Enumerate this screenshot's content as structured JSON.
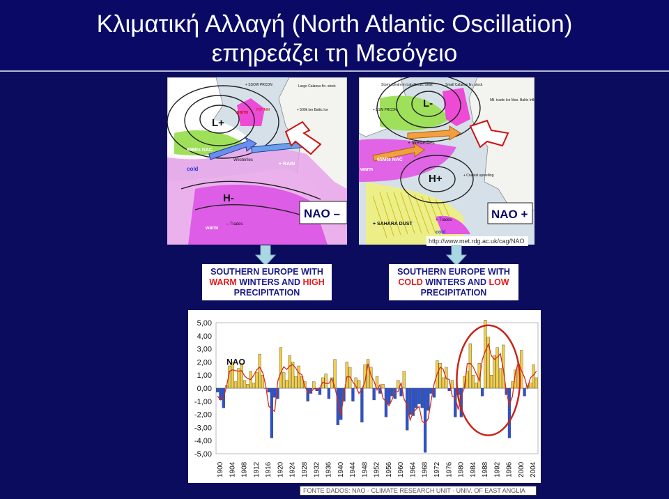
{
  "header": {
    "title_line1": "Κλιματική Αλλαγή (North Atlantic Oscillation)",
    "title_line2": "επηρεάζει τη Μεσόγειο"
  },
  "map_left": {
    "phase_label": "NAO –",
    "low_label": "L+",
    "high_label": "H-",
    "labels": [
      "warm",
      "cold",
      "warm",
      "– Trades",
      "Westerlies",
      "+ RAIN",
      "65Mts NAC",
      "+ SSOW PRCDN",
      "Large Calanus fin. stock",
      "+ 500k km Baltic Ice",
      "FST MM"
    ]
  },
  "map_right": {
    "phase_label": "NAO +",
    "low_label": "L-",
    "high_label": "H+",
    "labels": [
      "Storm Centre in Lab-Nordic Seas",
      "+ LSW PRCDN",
      "+ Westerlies",
      "65Mts NAC",
      "warm",
      "+ Coastal upwelling",
      "+ SAHARA DUST",
      "+ Trades",
      "cold",
      "Small Calanus fin. stock",
      "Mil. tradic Ice Max. Baltic Inflow"
    ],
    "url": "http://www.met.rdg.ac.uk/cag/NAO"
  },
  "effects": [
    {
      "line1": "SOUTHERN EUROPE WITH",
      "w1": "WARM",
      "mid": " WINTERS AND ",
      "w2": "HIGH",
      "line3": "PRECIPITATION"
    },
    {
      "line1": "SOUTHERN EUROPE WITH",
      "w1": "COLD",
      "mid": " WINTERS AND ",
      "w2": "LOW",
      "line3": "PRECIPITATION"
    }
  ],
  "source": "FONTE DADOS: NAO - CLIMATE RESEARCH UNIT - UNIV. OF EAST ANGLIA",
  "colors": {
    "bar_pos": "#f2cf4a",
    "bar_neg": "#2b53d0",
    "line": "#d42a1e",
    "circle": "#c8241a",
    "background": "#0c0c5e"
  },
  "chart_data": {
    "type": "bar",
    "annotation": "NAO",
    "ylim": [
      -5,
      5
    ],
    "ytick_labels": [
      "5,00",
      "4,00",
      "3,00",
      "2,00",
      "1,00",
      "0,00",
      "-1,00",
      "-2,00",
      "-3,00",
      "-4,00",
      "-5,00"
    ],
    "xtick_labels": [
      "1900",
      "1904",
      "1908",
      "1912",
      "1916",
      "1920",
      "1924",
      "1928",
      "1932",
      "1936",
      "1940",
      "1944",
      "1948",
      "1952",
      "1956",
      "1960",
      "1964",
      "1968",
      "1972",
      "1976",
      "1980",
      "1984",
      "1988",
      "1992",
      "1996",
      "2000",
      "2004"
    ],
    "x_start": 1899,
    "x_end": 2005,
    "years": [
      1899,
      1900,
      1901,
      1902,
      1903,
      1904,
      1905,
      1906,
      1907,
      1908,
      1909,
      1910,
      1911,
      1912,
      1913,
      1914,
      1915,
      1916,
      1917,
      1918,
      1919,
      1920,
      1921,
      1922,
      1923,
      1924,
      1925,
      1926,
      1927,
      1928,
      1929,
      1930,
      1931,
      1932,
      1933,
      1934,
      1935,
      1936,
      1937,
      1938,
      1939,
      1940,
      1941,
      1942,
      1943,
      1944,
      1945,
      1946,
      1947,
      1948,
      1949,
      1950,
      1951,
      1952,
      1953,
      1954,
      1955,
      1956,
      1957,
      1958,
      1959,
      1960,
      1961,
      1962,
      1963,
      1964,
      1965,
      1966,
      1967,
      1968,
      1969,
      1970,
      1971,
      1972,
      1973,
      1974,
      1975,
      1976,
      1977,
      1978,
      1979,
      1980,
      1981,
      1982,
      1983,
      1984,
      1985,
      1986,
      1987,
      1988,
      1989,
      1990,
      1991,
      1992,
      1993,
      1994,
      1995,
      1996,
      1997,
      1998,
      1999,
      2000,
      2001,
      2002,
      2003,
      2004,
      2005
    ],
    "values": [
      -0.3,
      -0.9,
      -1.5,
      0.2,
      1.7,
      2.0,
      0.5,
      1.5,
      1.9,
      0.6,
      0.3,
      1.3,
      0.4,
      1.2,
      2.6,
      1.0,
      0.0,
      -0.3,
      -3.8,
      -0.7,
      -0.8,
      3.1,
      1.2,
      0.6,
      2.5,
      2.0,
      0.9,
      1.7,
      0.9,
      0.5,
      -1.0,
      -0.4,
      0.5,
      -0.2,
      -0.5,
      0.8,
      1.1,
      -0.8,
      0.8,
      2.2,
      -2.8,
      -2.4,
      -1.0,
      2.0,
      1.6,
      -1.0,
      0.8,
      0.6,
      -2.6,
      1.8,
      2.2,
      1.6,
      -0.9,
      0.9,
      -0.4,
      0.3,
      -2.2,
      -1.2,
      -0.6,
      -0.8,
      0.6,
      -0.6,
      1.3,
      -3.2,
      -2.0,
      -2.1,
      -1.5,
      -1.2,
      -1.5,
      -4.9,
      -1.7,
      -0.4,
      -0.7,
      2.1,
      1.9,
      0.8,
      1.6,
      -0.2,
      0.6,
      -2.2,
      -0.5,
      -2.2,
      0.9,
      1.3,
      3.4,
      1.0,
      0.4,
      1.9,
      -0.6,
      5.2,
      3.9,
      1.0,
      2.5,
      3.1,
      1.5,
      3.3,
      -0.5,
      -3.8,
      0.5,
      1.4,
      1.7,
      2.9,
      -0.6,
      0.2,
      0.4,
      1.8,
      0.8
    ]
  }
}
